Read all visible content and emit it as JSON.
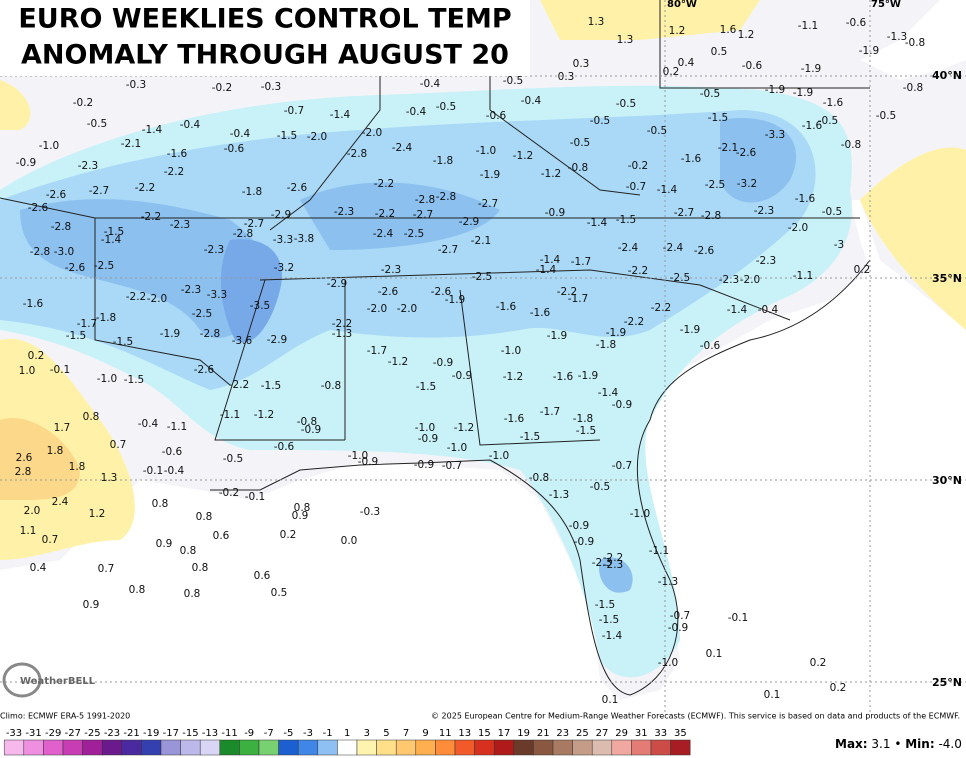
{
  "header": {
    "title_lines": [
      "EURO WEEKLIES CONTROL TEMP",
      "ANOMALY THROUGH AUGUST 20"
    ]
  },
  "map": {
    "lat_labels": [
      "40°N",
      "35°N",
      "30°N",
      "25°N"
    ],
    "lon_labels": [
      "80°W",
      "75°W"
    ],
    "point_labels": [
      "-0.3",
      "-0.2",
      "-0.2",
      "-0.3",
      "-0.4",
      "-0.5",
      "0.3",
      "0.3",
      "1.3",
      "1.3",
      "1.2",
      "1.6",
      "1.2",
      "0.5",
      "0.4",
      "0.2",
      "-0.6",
      "-1.1",
      "-0.6",
      "-1.9",
      "-1.9",
      "-1.3",
      "-0.8",
      "-0.5",
      "-1.4",
      "-0.4",
      "-0.7",
      "-1.4",
      "-0.4",
      "-0.5",
      "-0.6",
      "-0.4",
      "-0.5",
      "-0.5",
      "-0.5",
      "-1.9",
      "-1.9",
      "-1.5",
      "-0.5",
      "-0.9",
      "-1.0",
      "-2.3",
      "-2.1",
      "-1.6",
      "-2.2",
      "-0.4",
      "-0.6",
      "-1.5",
      "-2.0",
      "-2.0",
      "-2.4",
      "-2.8",
      "-1.8",
      "-1.0",
      "-1.2",
      "-1.9",
      "-1.2",
      "-0.8",
      "-0.5",
      "-0.2",
      "-1.6",
      "-2.1",
      "-2.6",
      "-3.3",
      "-1.6",
      "-0.5",
      "-1.6",
      "-0.5",
      "-0.8",
      "-2.6",
      "-2.7",
      "-2.2",
      "-1.8",
      "-2.6",
      "-2.2",
      "-2.8",
      "-2.8",
      "-2.7",
      "-0.7",
      "-1.4",
      "-2.5",
      "-3.2",
      "-1.6",
      "-0.8",
      "-2.6",
      "-2.8",
      "-2.2",
      "-2.3",
      "-2.8",
      "-2.7",
      "-2.9",
      "-2.3",
      "-2.2",
      "-2.7",
      "-2.9",
      "-0.9",
      "-1.4",
      "-1.5",
      "-2.7",
      "-2.8",
      "-2.3",
      "-0.5",
      "-2.0",
      "-1.5",
      "-1.4",
      "-3.3",
      "-3.8",
      "-2.4",
      "-2.5",
      "-2.1",
      "-2.7",
      "-2.4",
      "-2.4",
      "-2.6",
      "-3",
      "-2.8",
      "-3.0",
      "-2.6",
      "-2.5",
      "-2.3",
      "-3.2",
      "-2.3",
      "-2.5",
      "-1.4",
      "-1.4",
      "-1.7",
      "-2.2",
      "-2.5",
      "-2.3",
      "-2.0",
      "-2.3",
      "-1.1",
      "0.2",
      "-1.6",
      "-2.2",
      "-2.0",
      "-2.3",
      "-3.3",
      "-2.9",
      "-2.6",
      "-2.6",
      "-1.9",
      "-2.0",
      "-2.0",
      "-3.5",
      "-2.5",
      "-2.2",
      "-1.7",
      "-1.6",
      "-1.6",
      "-2.2",
      "-2.2",
      "-1.9",
      "-1.4",
      "-0.4",
      "-1.7",
      "-1.8",
      "-1.5",
      "-1.9",
      "-2.8",
      "-3.6",
      "-2.9",
      "-2.2",
      "-1.3",
      "-1.9",
      "-1.8",
      "-0.6",
      "-1.5",
      "-1.9",
      "0.2",
      "1.0",
      "-0.1",
      "-1.0",
      "-1.5",
      "-2.6",
      "-2.2",
      "-1.5",
      "-0.8",
      "-1.7",
      "-1.2",
      "-0.9",
      "-1.5",
      "-0.9",
      "-1.0",
      "-1.2",
      "-1.6",
      "-1.9",
      "-1.4",
      "-0.9",
      "0.8",
      "1.7",
      "-0.4",
      "-1.1",
      "-1.1",
      "-1.2",
      "-0.8",
      "-0.9",
      "-1.0",
      "-1.2",
      "-1.6",
      "-1.7",
      "-1.8",
      "-1.5",
      "-1.5",
      "-0.9",
      "0.7",
      "1.8",
      "-0.6",
      "-0.6",
      "2.6",
      "1.8",
      "2.8",
      "-0.5",
      "-1.0",
      "-0.9",
      "-1.0",
      "-0.9",
      "-0.7",
      "-1.0",
      "-0.7",
      "-0.1",
      "-0.4",
      "1.3",
      "-0.8",
      "-0.5",
      "-0.2",
      "-0.1",
      "2.0",
      "2.4",
      "1.2",
      "0.8",
      "0.8",
      "-0.3",
      "-1.3",
      "-1.0",
      "-0.9",
      "-0.9",
      "-1.1",
      "1.1",
      "0.7",
      "0.6",
      "0.2",
      "0.0",
      "0.9",
      "0.8",
      "0.4",
      "0.7",
      "0.8",
      "0.6",
      "-2.2",
      "-2.3",
      "-2.3",
      "-1.3",
      "0.8",
      "0.8",
      "0.5",
      "0.9",
      "-1.5",
      "-1.5",
      "-0.7",
      "-0.9",
      "-0.1",
      "-1.4",
      "-1.0",
      "0.1",
      "0.2",
      "0.1",
      "0.2",
      "0.1",
      "0.8",
      "0.9"
    ]
  },
  "logo": "WeatherBELL",
  "footer": {
    "climo": "Climo: ECMWF ERA-5 1991-2020",
    "copyright": "© 2025 European Centre for Medium-Range Weather Forecasts (ECMWF). This service is based on data and products of the ECMWF.",
    "max_label": "Max:",
    "max": "3.1",
    "separator": "•",
    "min_label": "Min:",
    "min": "-4.0"
  },
  "legend": {
    "ticks": [
      -33,
      -31,
      -29,
      -27,
      -25,
      -23,
      -21,
      -19,
      -17,
      -15,
      -13,
      -11,
      -9,
      -7,
      -5,
      -3,
      -1,
      1,
      3,
      5,
      7,
      9,
      11,
      13,
      15,
      17,
      19,
      21,
      23,
      25,
      27,
      29,
      31,
      33,
      35
    ],
    "colors": [
      "#f7b8ec",
      "#ee8fdf",
      "#e060cc",
      "#c83cb4",
      "#a0209a",
      "#6a1a8c",
      "#4a2a9e",
      "#3440b0",
      "#9a94d8",
      "#bcb8ea",
      "#d8d6f4",
      "#1a8a2a",
      "#3cb040",
      "#78d070",
      "#1c5fd0",
      "#3f86e6",
      "#8ec0f4",
      "#ffffff",
      "#fff3b0",
      "#ffe08a",
      "#ffc870",
      "#ffae50",
      "#ff8c3a",
      "#f25a2a",
      "#d8301e",
      "#b01a18",
      "#6a3a2a",
      "#8a5840",
      "#a87a62",
      "#c49c88",
      "#dcbcae",
      "#f0a8a0",
      "#e27c74",
      "#cc4c48",
      "#a81c24"
    ]
  }
}
